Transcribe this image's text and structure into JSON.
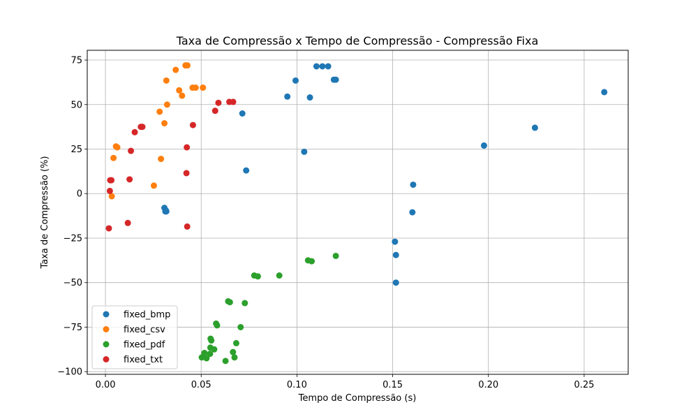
{
  "chart_data": {
    "type": "scatter",
    "title": "Taxa de Compressão x Tempo de Compressão - Compressão Fixa",
    "xlabel": "Tempo de Compressão (s)",
    "ylabel": "Taxa de Compressão (%)",
    "xlim": [
      -0.0095,
      0.273
    ],
    "ylim": [
      -101.5,
      80.5
    ],
    "xticks": [
      0.0,
      0.05,
      0.1,
      0.15,
      0.2,
      0.25
    ],
    "xtick_labels": [
      "0.00",
      "0.05",
      "0.10",
      "0.15",
      "0.20",
      "0.25"
    ],
    "yticks": [
      -100,
      -75,
      -50,
      -25,
      0,
      25,
      50,
      75
    ],
    "ytick_labels": [
      "−100",
      "−75",
      "−50",
      "−25",
      "0",
      "25",
      "50",
      "75"
    ],
    "grid": true,
    "legend_position": "lower-left",
    "series": [
      {
        "name": "fixed_bmp",
        "color": "#1f77b4",
        "points": [
          [
            0.0308,
            -8.0
          ],
          [
            0.0313,
            -10.0
          ],
          [
            0.0318,
            -10.0
          ],
          [
            0.0316,
            -9.5
          ],
          [
            0.0715,
            45.0
          ],
          [
            0.0735,
            13.0
          ],
          [
            0.095,
            54.5
          ],
          [
            0.0993,
            63.5
          ],
          [
            0.1038,
            23.5
          ],
          [
            0.1068,
            54.0
          ],
          [
            0.1102,
            71.5
          ],
          [
            0.1133,
            71.5
          ],
          [
            0.1163,
            71.5
          ],
          [
            0.1193,
            64.0
          ],
          [
            0.1203,
            64.0
          ],
          [
            0.1512,
            -27.0
          ],
          [
            0.1517,
            -34.5
          ],
          [
            0.1517,
            -50.0
          ],
          [
            0.1603,
            -10.5
          ],
          [
            0.1607,
            5.0
          ],
          [
            0.1977,
            27.0
          ],
          [
            0.2243,
            37.0
          ],
          [
            0.2605,
            57.0
          ]
        ]
      },
      {
        "name": "fixed_csv",
        "color": "#ff7f0e",
        "points": [
          [
            0.0033,
            -1.5
          ],
          [
            0.0042,
            20.0
          ],
          [
            0.0055,
            26.5
          ],
          [
            0.0062,
            26.0
          ],
          [
            0.0253,
            4.5
          ],
          [
            0.0283,
            46.0
          ],
          [
            0.029,
            19.5
          ],
          [
            0.0308,
            39.5
          ],
          [
            0.0318,
            63.5
          ],
          [
            0.0322,
            50.0
          ],
          [
            0.0367,
            69.5
          ],
          [
            0.0385,
            58.0
          ],
          [
            0.04,
            55.0
          ],
          [
            0.0418,
            72.0
          ],
          [
            0.0428,
            72.0
          ],
          [
            0.0455,
            59.5
          ],
          [
            0.0471,
            59.5
          ],
          [
            0.0509,
            59.5
          ]
        ]
      },
      {
        "name": "fixed_pdf",
        "color": "#2ca02c",
        "points": [
          [
            0.0503,
            -92.0
          ],
          [
            0.0517,
            -89.5
          ],
          [
            0.0528,
            -92.5
          ],
          [
            0.0546,
            -90.0
          ],
          [
            0.0548,
            -86.5
          ],
          [
            0.0549,
            -81.5
          ],
          [
            0.0553,
            -82.5
          ],
          [
            0.0568,
            -87.5
          ],
          [
            0.0578,
            -73.0
          ],
          [
            0.0583,
            -74.0
          ],
          [
            0.0627,
            -94.0
          ],
          [
            0.0641,
            -60.5
          ],
          [
            0.065,
            -61.0
          ],
          [
            0.0666,
            -89.0
          ],
          [
            0.0674,
            -92.0
          ],
          [
            0.0683,
            -84.0
          ],
          [
            0.0706,
            -75.0
          ],
          [
            0.0728,
            -61.5
          ],
          [
            0.0777,
            -46.0
          ],
          [
            0.0796,
            -46.5
          ],
          [
            0.0908,
            -46.0
          ],
          [
            0.1058,
            -37.5
          ],
          [
            0.1077,
            -38.0
          ],
          [
            0.1203,
            -35.0
          ]
        ]
      },
      {
        "name": "fixed_txt",
        "color": "#d62728",
        "points": [
          [
            0.0018,
            -19.5
          ],
          [
            0.0023,
            1.5
          ],
          [
            0.0025,
            7.5
          ],
          [
            0.0031,
            7.5
          ],
          [
            0.0117,
            -16.5
          ],
          [
            0.0126,
            8.0
          ],
          [
            0.0133,
            24.0
          ],
          [
            0.0153,
            34.5
          ],
          [
            0.0185,
            37.5
          ],
          [
            0.0193,
            37.5
          ],
          [
            0.0423,
            11.5
          ],
          [
            0.0425,
            26.0
          ],
          [
            0.0427,
            -18.5
          ],
          [
            0.0457,
            38.5
          ],
          [
            0.0573,
            46.5
          ],
          [
            0.059,
            51.0
          ],
          [
            0.0647,
            51.5
          ],
          [
            0.0667,
            51.5
          ]
        ]
      }
    ]
  }
}
